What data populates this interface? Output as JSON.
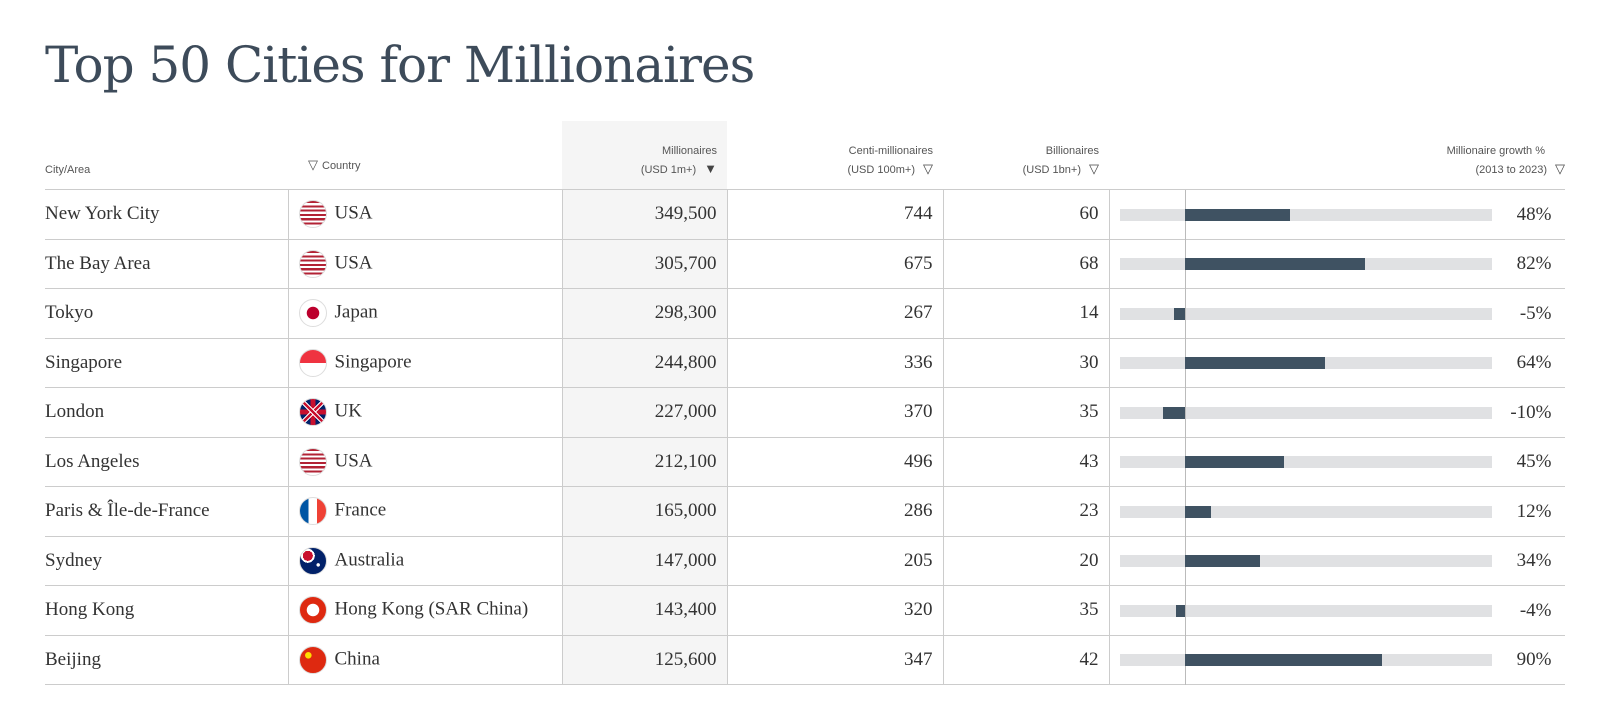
{
  "title": "Top 50 Cities for Millionaires",
  "headers": {
    "city": "City/Area",
    "country": "Country",
    "millionaires": [
      "Millionaires",
      "(USD 1m+)"
    ],
    "centi": [
      "Centi-millionaires",
      "(USD 100m+)"
    ],
    "billionaires": [
      "Billionaires",
      "(USD 1bn+)"
    ],
    "growth": [
      "Millionaire growth %",
      "(2013 to 2023)"
    ]
  },
  "colors": {
    "bar": "#3f5262",
    "track": "#e0e1e3"
  },
  "growth_scale": [
    -30,
    140
  ],
  "rows": [
    {
      "city": "New York City",
      "country": "USA",
      "flag": "us",
      "millionaires": "349,500",
      "centi": "744",
      "billionaires": "60",
      "growth": 48,
      "growth_label": "48%"
    },
    {
      "city": "The Bay Area",
      "country": "USA",
      "flag": "us",
      "millionaires": "305,700",
      "centi": "675",
      "billionaires": "68",
      "growth": 82,
      "growth_label": "82%"
    },
    {
      "city": "Tokyo",
      "country": "Japan",
      "flag": "jp",
      "millionaires": "298,300",
      "centi": "267",
      "billionaires": "14",
      "growth": -5,
      "growth_label": "-5%"
    },
    {
      "city": "Singapore",
      "country": "Singapore",
      "flag": "sg",
      "millionaires": "244,800",
      "centi": "336",
      "billionaires": "30",
      "growth": 64,
      "growth_label": "64%"
    },
    {
      "city": "London",
      "country": "UK",
      "flag": "uk",
      "millionaires": "227,000",
      "centi": "370",
      "billionaires": "35",
      "growth": -10,
      "growth_label": "-10%"
    },
    {
      "city": "Los Angeles",
      "country": "USA",
      "flag": "us",
      "millionaires": "212,100",
      "centi": "496",
      "billionaires": "43",
      "growth": 45,
      "growth_label": "45%"
    },
    {
      "city": "Paris & Île-de-France",
      "country": "France",
      "flag": "fr",
      "millionaires": "165,000",
      "centi": "286",
      "billionaires": "23",
      "growth": 12,
      "growth_label": "12%"
    },
    {
      "city": "Sydney",
      "country": "Australia",
      "flag": "au",
      "millionaires": "147,000",
      "centi": "205",
      "billionaires": "20",
      "growth": 34,
      "growth_label": "34%"
    },
    {
      "city": "Hong Kong",
      "country": "Hong Kong (SAR China)",
      "flag": "hk",
      "millionaires": "143,400",
      "centi": "320",
      "billionaires": "35",
      "growth": -4,
      "growth_label": "-4%"
    },
    {
      "city": "Beijing",
      "country": "China",
      "flag": "cn",
      "millionaires": "125,600",
      "centi": "347",
      "billionaires": "42",
      "growth": 90,
      "growth_label": "90%"
    }
  ]
}
